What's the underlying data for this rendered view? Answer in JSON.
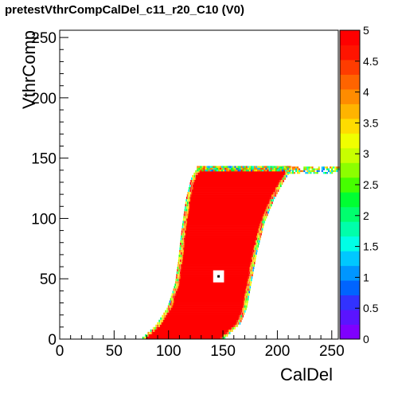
{
  "title": "pretestVthrCompCalDel_c11_r20_C10 (V0)",
  "chart_data": {
    "type": "heatmap",
    "title": "pretestVthrCompCalDel_c11_r20_C10 (V0)",
    "xlabel": "CalDel",
    "ylabel": "VthrComp",
    "xlim": [
      0,
      256
    ],
    "ylim": [
      0,
      256
    ],
    "x_ticks": [
      "0",
      "50",
      "100",
      "150",
      "200",
      "250"
    ],
    "y_ticks": [
      "0",
      "50",
      "100",
      "150",
      "200",
      "250"
    ],
    "z_range": [
      0,
      5
    ],
    "z_ticks": [
      "0",
      "0.5",
      "1",
      "1.5",
      "2",
      "2.5",
      "3",
      "3.5",
      "4",
      "4.5",
      "5"
    ],
    "palette": [
      "#7f00ff",
      "#5a14ff",
      "#3232ff",
      "#0064ff",
      "#0096ff",
      "#00c8ff",
      "#00ffe6",
      "#00ffaa",
      "#00ff6e",
      "#00ff32",
      "#46ff00",
      "#8cff00",
      "#c8ff00",
      "#f0ff00",
      "#ffdc00",
      "#ffb400",
      "#ff8c00",
      "#ff6400",
      "#ff3c00",
      "#ff1400",
      "#ff0000"
    ],
    "main_value": 5,
    "region": {
      "description_points": "efficiency region boundary in data units",
      "left_edge": [
        [
          80,
          0
        ],
        [
          92,
          10
        ],
        [
          103,
          25
        ],
        [
          110,
          45
        ],
        [
          113,
          65
        ],
        [
          116,
          90
        ],
        [
          120,
          115
        ],
        [
          125,
          133
        ],
        [
          130,
          140
        ]
      ],
      "right_edge": [
        [
          148,
          0
        ],
        [
          162,
          12
        ],
        [
          168,
          25
        ],
        [
          172,
          45
        ],
        [
          177,
          70
        ],
        [
          184,
          95
        ],
        [
          193,
          115
        ],
        [
          202,
          130
        ],
        [
          207,
          137
        ]
      ],
      "plateau": {
        "x_range": [
          200,
          256
        ],
        "y_range": [
          137,
          143
        ]
      },
      "masked_pixel": {
        "x": 146,
        "y": 52
      }
    }
  }
}
